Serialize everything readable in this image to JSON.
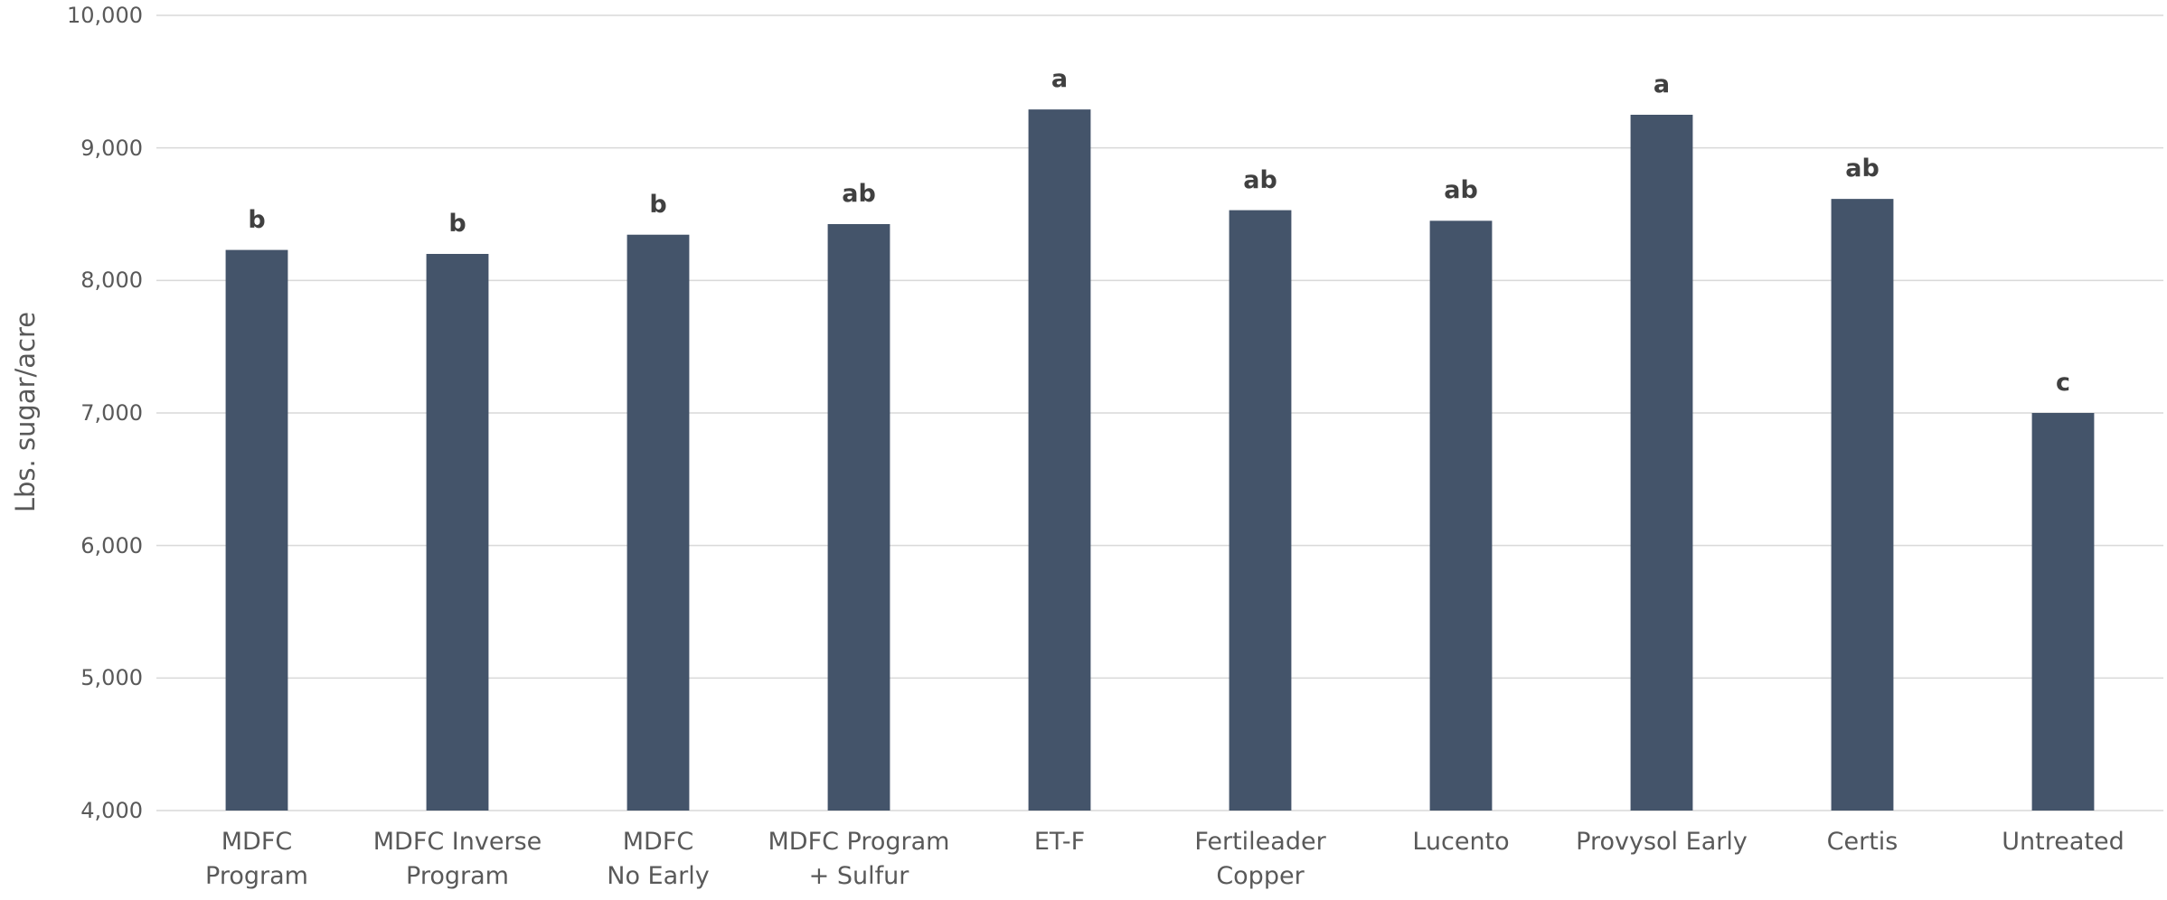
{
  "chart_data": {
    "type": "bar",
    "y_label": "Lbs. sugar/acre",
    "categories": [
      "MDFC\nProgram",
      "MDFC Inverse\nProgram",
      "MDFC\nNo Early",
      "MDFC Program\n+ Sulfur",
      "ET-F",
      "Fertileader\nCopper",
      "Lucento",
      "Provysol Early",
      "Certis",
      "Untreated"
    ],
    "values": [
      8230,
      8200,
      8345,
      8425,
      9290,
      8530,
      8450,
      9250,
      8615,
      7000
    ],
    "annotations": [
      "b",
      "b",
      "b",
      "ab",
      "a",
      "ab",
      "ab",
      "a",
      "ab",
      "c"
    ],
    "color": "#44546a",
    "ylim": [
      4000,
      10000
    ],
    "yticks": [
      {
        "value": 4000,
        "label": "4,000"
      },
      {
        "value": 5000,
        "label": "5,000"
      },
      {
        "value": 6000,
        "label": "6,000"
      },
      {
        "value": 7000,
        "label": "7,000"
      },
      {
        "value": 8000,
        "label": "8,000"
      },
      {
        "value": 9000,
        "label": "9,000"
      },
      {
        "value": 10000,
        "label": "10,000"
      }
    ],
    "grid": true
  }
}
